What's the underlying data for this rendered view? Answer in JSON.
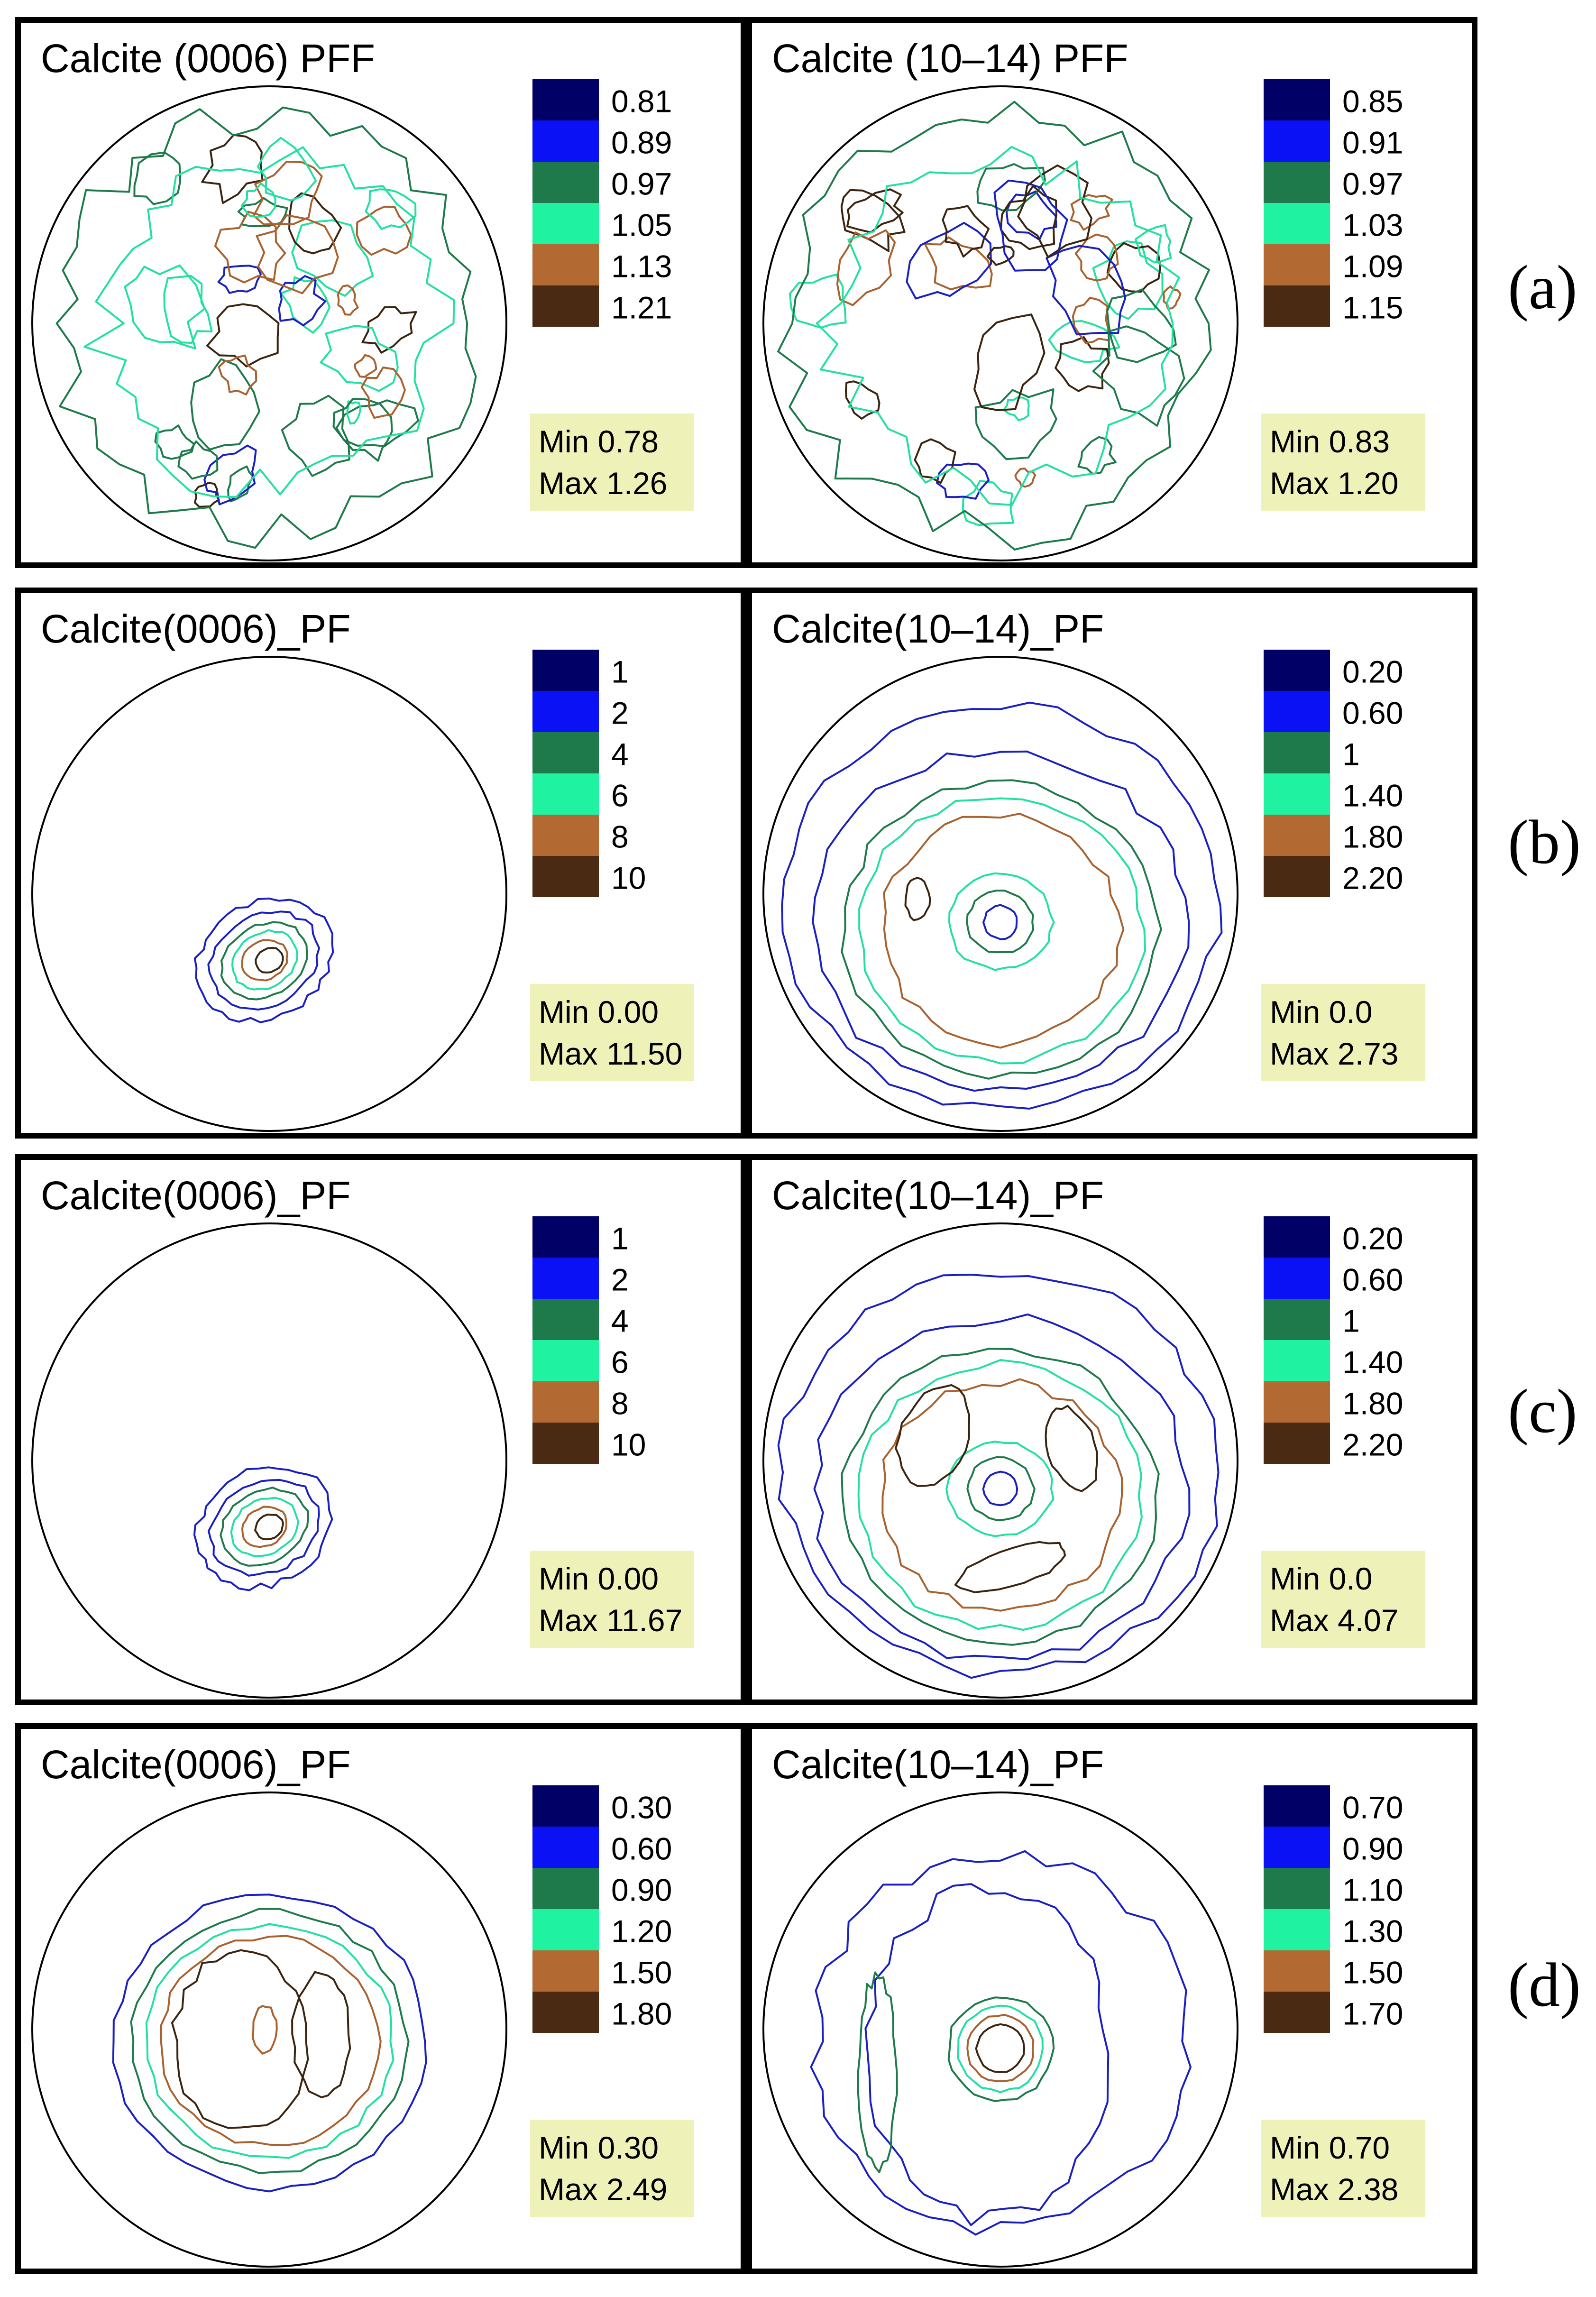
{
  "figure": {
    "rows": [
      {
        "label": "(a)",
        "panels": [
          {
            "title": "Calcite (0006) PFF",
            "legend": [
              "0.81",
              "0.89",
              "0.97",
              "1.05",
              "1.13",
              "1.21"
            ],
            "min": "Min 0.78",
            "max": "Max 1.26",
            "pattern": "noisy"
          },
          {
            "title": "Calcite (10–14) PFF",
            "legend": [
              "0.85",
              "0.91",
              "0.97",
              "1.03",
              "1.09",
              "1.15"
            ],
            "min": "Min 0.83",
            "max": "Max 1.20",
            "pattern": "noisy"
          }
        ]
      },
      {
        "label": "(b)",
        "panels": [
          {
            "title": "Calcite(0006)_PF",
            "legend": [
              "1",
              "2",
              "4",
              "6",
              "8",
              "10"
            ],
            "min": "Min 0.00",
            "max": "Max 11.50",
            "pattern": "point"
          },
          {
            "title": "Calcite(10–14)_PF",
            "legend": [
              "0.20",
              "0.60",
              "1",
              "1.40",
              "1.80",
              "2.20"
            ],
            "min": "Min 0.0",
            "max": "Max 2.73",
            "pattern": "girdle"
          }
        ]
      },
      {
        "label": "(c)",
        "panels": [
          {
            "title": "Calcite(0006)_PF",
            "legend": [
              "1",
              "2",
              "4",
              "6",
              "8",
              "10"
            ],
            "min": "Min 0.00",
            "max": "Max 11.67",
            "pattern": "point"
          },
          {
            "title": "Calcite(10–14)_PF",
            "legend": [
              "0.20",
              "0.60",
              "1",
              "1.40",
              "1.80",
              "2.20"
            ],
            "min": "Min 0.0",
            "max": "Max 4.07",
            "pattern": "girdle3"
          }
        ]
      },
      {
        "label": "(d)",
        "panels": [
          {
            "title": "Calcite(0006)_PF",
            "legend": [
              "0.30",
              "0.60",
              "0.90",
              "1.20",
              "1.50",
              "1.80"
            ],
            "min": "Min 0.30",
            "max": "Max 2.49",
            "pattern": "broad"
          },
          {
            "title": "Calcite(10–14)_PF",
            "legend": [
              "0.70",
              "0.90",
              "1.10",
              "1.30",
              "1.50",
              "1.70"
            ],
            "min": "Min 0.70",
            "max": "Max 2.38",
            "pattern": "center"
          }
        ]
      }
    ]
  },
  "colors": {
    "level1": "#000066",
    "level2": "#0a12f5",
    "level3": "#1e7a4a",
    "level4": "#1ff2a0",
    "level5": "#b26a32",
    "level6": "#4a2a12",
    "contour_colors": [
      "#1a20c0",
      "#1e7a4a",
      "#22e0a0",
      "#a86230",
      "#3a2410"
    ],
    "stats_box": "#eef2b8",
    "frame": "#000000"
  },
  "icons": {
    "net": "stereonet-circle-icon"
  }
}
